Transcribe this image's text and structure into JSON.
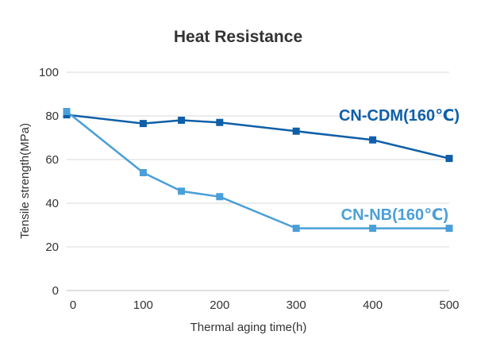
{
  "chart_data": {
    "type": "line",
    "title": "Heat Resistance",
    "xlabel": "Thermal aging time(h)",
    "ylabel": "Tensile strength(MPa)",
    "xlim": [
      0,
      500
    ],
    "ylim": [
      0,
      100
    ],
    "x_ticks": [
      "0",
      "100",
      "200",
      "300",
      "400",
      "500"
    ],
    "y_ticks": [
      "0",
      "20",
      "40",
      "60",
      "80",
      "100"
    ],
    "grid": "horizontal",
    "series": [
      {
        "name": "CN-CDM(160℃)",
        "color": "#0f5fa8",
        "x": [
          0,
          100,
          150,
          200,
          300,
          400,
          500
        ],
        "y": [
          80.5,
          76.5,
          78,
          77,
          73,
          69,
          60.5
        ]
      },
      {
        "name": "CN-NB(160℃)",
        "color": "#4a9fd8",
        "x": [
          0,
          100,
          150,
          200,
          300,
          400,
          500
        ],
        "y": [
          82,
          54,
          45.5,
          43,
          28.5,
          28.5,
          28.5
        ]
      }
    ]
  }
}
